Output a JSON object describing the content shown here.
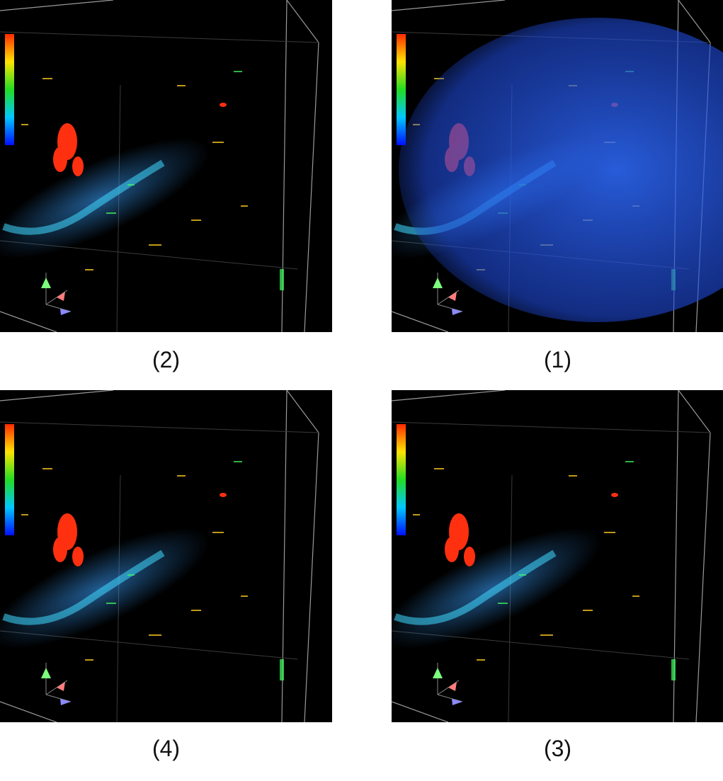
{
  "panels": [
    {
      "label": "(2)"
    },
    {
      "label": "(1)"
    },
    {
      "label": "(4)"
    },
    {
      "label": "(3)"
    }
  ]
}
